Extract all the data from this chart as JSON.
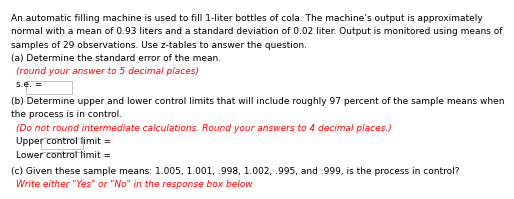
{
  "bg_color": "#ffffff",
  "text_color": "#000000",
  "red_color": "#ff0000",
  "blue_color": "#0000ff",
  "intro": "An automatic filling machine is used to fill 1-liter bottles of cola. The machine’s output is approximately\nnormal with a mean of 0.93 liters and a standard deviation of 0.02 liter. Output is monitored using means of\nsamples of 29 observations. Use z-tables to answer the question.",
  "part_a_label": "(a) Determine the standard error of the mean.",
  "part_a_italic": "(round your answer to 5 decimal places)",
  "part_a_field": "s.e. =",
  "part_b_label": "(b) Determine upper and lower control limits that will include roughly 97 percent of the sample means when\nthe process is in control.",
  "part_b_italic": "(Do not round intermediate calculations. Round your answers to 4 decimal places.)",
  "part_b_upper": "Upper control limit =",
  "part_b_lower": "Lower control limit =",
  "part_c_label": "(c) Given these sample means: 1.005, 1.001, .998, 1.002, .995, and .999, is the process in control?",
  "part_c_italic": "Write either \"Yes\" or \"No\" in the response box below",
  "font_size_main": 6.5,
  "font_size_label": 6.5,
  "font_size_italic": 6.5,
  "indent1": 0.05,
  "indent2": 0.08,
  "box_color": "#ffffff",
  "box_edge": "#aaaaaa"
}
